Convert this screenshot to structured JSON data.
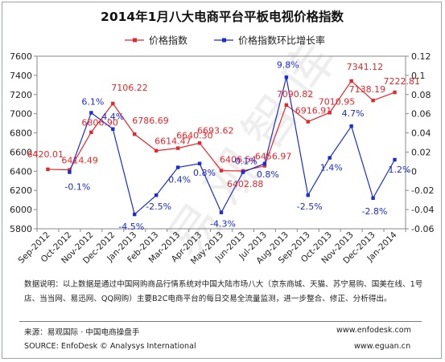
{
  "chart_data": {
    "type": "line",
    "title": "2014年1月八大电商平台平板电视价格指数",
    "categories": [
      "Sep-2012",
      "Oct-2012",
      "Nov-2012",
      "Dec-2012",
      "Jan-2013",
      "Feb-2013",
      "Mar-2013",
      "Apr-2013",
      "May-2013",
      "Jun-2013",
      "Jul-2013",
      "Aug-2013",
      "Sep-2013",
      "Oct-2013",
      "Nov-2013",
      "Dec-2013",
      "Jan-2014"
    ],
    "series": [
      {
        "name": "价格指数",
        "color": "#e8262a",
        "axis": "left",
        "values": [
          6420.01,
          6414.49,
          6806.9,
          7106.22,
          6786.69,
          6614.47,
          6640.3,
          6693.62,
          6406.54,
          6402.88,
          6456.97,
          7090.82,
          6916.91,
          7010.95,
          7341.12,
          7138.19,
          7222.81
        ],
        "labels": [
          "6420.01",
          "6414.49",
          "6806.90",
          "7106.22",
          "6786.69",
          "6614.47",
          "6640.30",
          "6693.62",
          "6406.54",
          "6402.88",
          "6456.97",
          "7090.82",
          "6916.91",
          "7010.95",
          "7341.12",
          "7138.19",
          "7222.81"
        ]
      },
      {
        "name": "价格指数环比增长率",
        "color": "#1b2bd6",
        "axis": "right",
        "values": [
          null,
          -0.001,
          0.061,
          0.044,
          -0.045,
          -0.025,
          0.004,
          0.008,
          -0.043,
          -0.001,
          0.008,
          0.098,
          -0.025,
          0.014,
          0.047,
          -0.028,
          0.012
        ],
        "labels": [
          null,
          "-0.1%",
          "6.1%",
          "4.4%",
          "-4.5%",
          "-2.5%",
          "0.4%",
          "0.8%",
          "-4.3%",
          "-0.1%",
          "0.8%",
          "9.8%",
          "-2.5%",
          "1.4%",
          "4.7%",
          "-2.8%",
          "1.2%"
        ]
      }
    ],
    "yleft": {
      "min": 5800,
      "max": 7600,
      "ticks": [
        "5800",
        "6000",
        "6200",
        "6400",
        "6600",
        "6800",
        "7000",
        "7200",
        "7400",
        "7600"
      ]
    },
    "yright": {
      "min": -0.06,
      "max": 0.12,
      "ticks": [
        "-0.06",
        "-0.04",
        "-0.02",
        "0",
        "0.02",
        "0.04",
        "0.06",
        "0.08",
        "0.1",
        "0.12"
      ]
    },
    "legend_position": "top",
    "grid": false
  },
  "note": "数据说明：以上数据是通过中国网购商品行情系统对中国大陆市场八大（京东商城、天猫、苏宁易购、国美在线、1号店、当当网、易迅网、QQ网购）主要B2C电商平台的每日交易全流量监测，进一步整合、修正、分析得出。",
  "source": {
    "cn": "来源：易观国际 · 中国电商操盘手",
    "en": "SOURCE: EnfoDesk © Analysys International",
    "site1": "www.enfodesk.com",
    "site2": "www.eguan.cn"
  },
  "watermark": "易观智库"
}
